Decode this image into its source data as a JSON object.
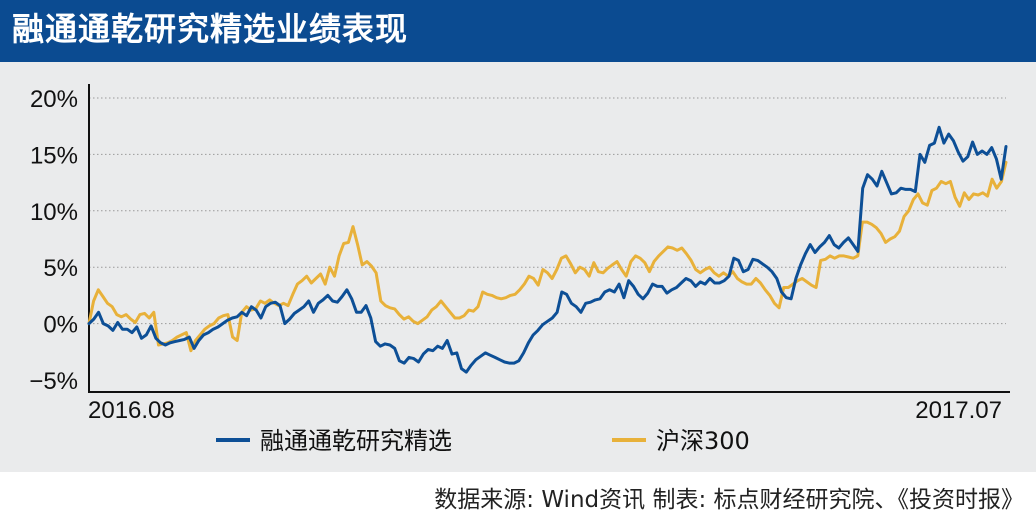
{
  "header": {
    "title": "融通通乾研究精选业绩表现"
  },
  "footer": {
    "source": "数据来源: Wind资讯  制表: 标点财经研究院、《投资时报》"
  },
  "colors": {
    "title_bg": "#0b4b91",
    "panel_bg": "#eaebec",
    "fund": "#0d4f96",
    "index": "#e8b13a"
  },
  "chart_data": {
    "type": "line",
    "title": "融通通乾研究精选业绩表现",
    "x_start_label": "2016.08",
    "x_end_label": "2017.07",
    "y_ticks": [
      "20%",
      "15%",
      "10%",
      "5%",
      "0%",
      "−5%"
    ],
    "ylim": [
      -5,
      20
    ],
    "y_unit": "%",
    "grid": "horizontal dotted",
    "legend_position": "bottom",
    "series": [
      {
        "name": "融通通乾研究精选",
        "color": "#0d4f96",
        "values": [
          0.0,
          0.4,
          1.0,
          0.0,
          -0.2,
          -0.6,
          0.1,
          -0.5,
          -0.5,
          -0.8,
          -0.3,
          -1.3,
          -1.0,
          -0.2,
          -1.3,
          -1.7,
          -1.9,
          -1.7,
          -1.6,
          -1.5,
          -1.4,
          -1.2,
          -2.2,
          -1.5,
          -1.0,
          -0.8,
          -0.5,
          -0.3,
          0.0,
          0.3,
          0.5,
          0.6,
          1.0,
          0.7,
          1.5,
          1.2,
          0.5,
          1.5,
          1.8,
          1.9,
          1.6,
          0.0,
          0.4,
          0.9,
          1.2,
          1.5,
          2.0,
          1.0,
          1.8,
          2.1,
          2.5,
          2.0,
          1.9,
          2.4,
          3.0,
          2.2,
          1.0,
          1.0,
          1.6,
          0.5,
          -1.6,
          -2.0,
          -1.8,
          -1.9,
          -2.2,
          -3.3,
          -3.5,
          -3.0,
          -3.1,
          -3.4,
          -2.7,
          -2.3,
          -2.4,
          -2.0,
          -2.2,
          -1.5,
          -2.7,
          -2.6,
          -4.0,
          -4.3,
          -3.7,
          -3.2,
          -2.9,
          -2.6,
          -2.8,
          -3.0,
          -3.2,
          -3.4,
          -3.5,
          -3.5,
          -3.3,
          -2.6,
          -1.7,
          -1.0,
          -0.6,
          -0.1,
          0.2,
          0.5,
          1.0,
          2.8,
          2.6,
          1.8,
          1.5,
          1.0,
          1.8,
          1.9,
          2.1,
          2.2,
          2.8,
          3.0,
          2.8,
          3.5,
          2.3,
          3.8,
          3.3,
          2.6,
          2.2,
          2.7,
          3.5,
          3.3,
          3.3,
          2.7,
          3.0,
          3.2,
          3.6,
          4.0,
          3.8,
          3.3,
          3.7,
          3.5,
          4.0,
          3.6,
          3.6,
          3.8,
          4.2,
          5.8,
          5.6,
          4.6,
          4.8,
          5.7,
          5.6,
          5.3,
          5.0,
          4.6,
          4.0,
          2.8,
          2.3,
          2.2,
          4.0,
          5.2,
          6.2,
          7.0,
          6.3,
          6.8,
          7.2,
          7.8,
          7.0,
          6.7,
          7.2,
          7.6,
          7.0,
          6.4,
          12.0,
          13.2,
          12.8,
          12.2,
          13.5,
          12.5,
          11.5,
          11.6,
          12.0,
          11.9,
          11.9,
          11.7,
          15.0,
          14.3,
          15.8,
          16.0,
          17.4,
          16.0,
          16.8,
          16.2,
          15.2,
          14.4,
          14.8,
          16.1,
          15.0,
          15.3,
          15.0,
          15.6,
          14.6,
          12.8,
          15.7
        ]
      },
      {
        "name": "沪深300",
        "color": "#e8b13a",
        "values": [
          0.0,
          2.0,
          3.0,
          2.4,
          1.8,
          1.5,
          0.8,
          0.6,
          0.8,
          0.4,
          0.1,
          0.8,
          0.9,
          0.5,
          1.0,
          -1.9,
          -1.8,
          -1.7,
          -1.5,
          -1.2,
          -1.0,
          -0.8,
          -2.4,
          -1.5,
          -1.0,
          -0.5,
          -0.2,
          0.0,
          0.5,
          0.7,
          0.8,
          -1.2,
          -1.5,
          1.0,
          1.5,
          1.2,
          1.3,
          2.0,
          1.8,
          2.1,
          1.8,
          1.6,
          1.8,
          1.6,
          2.6,
          3.5,
          3.8,
          4.2,
          3.6,
          4.0,
          4.4,
          3.5,
          5.0,
          4.2,
          6.0,
          7.1,
          7.2,
          8.6,
          7.0,
          5.2,
          5.5,
          5.1,
          4.5,
          2.0,
          1.6,
          1.4,
          1.3,
          0.8,
          0.4,
          0.6,
          0.2,
          0.0,
          0.3,
          0.6,
          1.2,
          1.5,
          2.0,
          1.5,
          1.0,
          0.5,
          0.5,
          0.7,
          1.2,
          1.1,
          1.5,
          2.8,
          2.6,
          2.5,
          2.3,
          2.2,
          2.3,
          2.5,
          2.6,
          3.0,
          3.5,
          4.2,
          4.0,
          3.4,
          4.8,
          4.5,
          4.0,
          4.8,
          5.8,
          6.0,
          5.3,
          4.5,
          5.0,
          4.8,
          4.2,
          5.4,
          4.6,
          4.5,
          4.9,
          5.2,
          5.5,
          4.8,
          4.2,
          5.5,
          6.0,
          5.8,
          5.4,
          4.6,
          5.5,
          6.0,
          6.4,
          6.8,
          6.7,
          6.5,
          6.7,
          6.2,
          5.6,
          4.8,
          4.5,
          4.8,
          5.0,
          4.5,
          4.2,
          4.5,
          4.2,
          4.6,
          4.0,
          3.7,
          3.5,
          3.5,
          4.0,
          3.6,
          3.0,
          2.5,
          1.8,
          1.4,
          3.2,
          3.2,
          3.5,
          3.8,
          4.0,
          3.7,
          3.4,
          3.2,
          5.6,
          5.7,
          6.0,
          5.8,
          6.0,
          6.0,
          5.9,
          5.8,
          6.0,
          9.0,
          9.0,
          8.8,
          8.5,
          8.0,
          7.2,
          7.5,
          7.7,
          8.2,
          9.5,
          10.0,
          11.0,
          11.5,
          10.7,
          10.5,
          11.8,
          12.0,
          12.6,
          12.4,
          12.6,
          11.2,
          10.4,
          11.6,
          11.0,
          11.5,
          11.4,
          11.6,
          11.3,
          12.8,
          12.0,
          12.6,
          14.3
        ]
      }
    ]
  }
}
